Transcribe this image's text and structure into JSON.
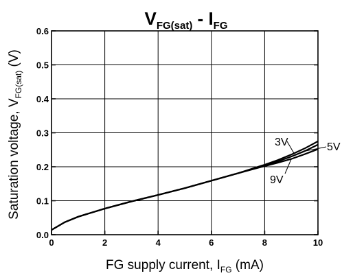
{
  "chart_data": {
    "type": "line",
    "title": {
      "main": "V",
      "main_sub": "FG(sat)",
      "sep": " - ",
      "second": "I",
      "second_sub": "FG"
    },
    "xlabel": {
      "text": "FG supply current, I",
      "sub": "FG",
      "unit": " (mA)"
    },
    "ylabel": {
      "text": "Saturation voltage, V",
      "sub": "FG(sat)",
      "unit": " (V)"
    },
    "xlim": [
      0,
      10
    ],
    "ylim": [
      0.0,
      0.6
    ],
    "x_ticks": [
      "0",
      "2",
      "4",
      "6",
      "8",
      "10"
    ],
    "y_ticks": [
      "0.0",
      "0.1",
      "0.2",
      "0.3",
      "0.4",
      "0.5",
      "0.6"
    ],
    "grid": true,
    "series": [
      {
        "name": "3V",
        "x": [
          0,
          0.5,
          1,
          2,
          3,
          4,
          5,
          6,
          7,
          8,
          8.5,
          9,
          9.5,
          10
        ],
        "y": [
          0.014,
          0.037,
          0.053,
          0.077,
          0.098,
          0.117,
          0.137,
          0.159,
          0.181,
          0.206,
          0.22,
          0.236,
          0.254,
          0.275
        ]
      },
      {
        "name": "5V",
        "x": [
          0,
          0.5,
          1,
          2,
          3,
          4,
          5,
          6,
          7,
          8,
          8.5,
          9,
          9.5,
          10
        ],
        "y": [
          0.014,
          0.037,
          0.053,
          0.077,
          0.098,
          0.117,
          0.137,
          0.159,
          0.181,
          0.204,
          0.216,
          0.23,
          0.246,
          0.265
        ]
      },
      {
        "name": "9V",
        "x": [
          0,
          0.5,
          1,
          2,
          3,
          4,
          5,
          6,
          7,
          8,
          8.5,
          9,
          9.5,
          10
        ],
        "y": [
          0.014,
          0.037,
          0.053,
          0.077,
          0.098,
          0.117,
          0.137,
          0.159,
          0.181,
          0.202,
          0.212,
          0.223,
          0.237,
          0.252
        ]
      }
    ],
    "annotations": [
      {
        "text": "3V",
        "series": "3V"
      },
      {
        "text": "5V",
        "series": "5V"
      },
      {
        "text": "9V",
        "series": "9V"
      }
    ]
  }
}
